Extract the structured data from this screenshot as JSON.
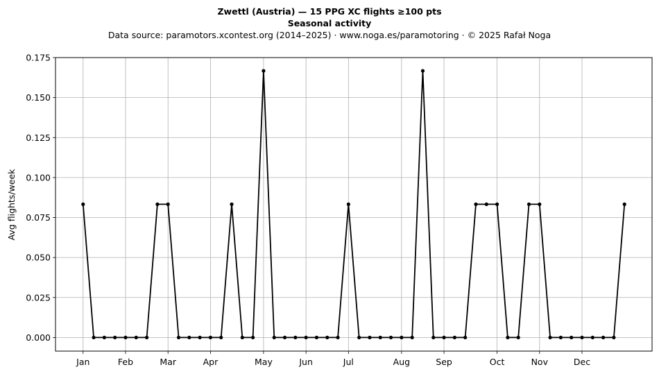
{
  "chart_data": {
    "type": "line",
    "title": "Zwettl (Austria)  —  15 PPG XC flights ≥100 pts",
    "subtitle": "Seasonal activity",
    "source_note": "Data source: paramotors.xcontest.org (2014–2025)  ·  www.noga.es/paramotoring  ·  © 2025 Rafał Noga",
    "xlabel": "",
    "ylabel": "Avg flights/week",
    "ylim": [
      -0.0085,
      0.175
    ],
    "xlim": [
      -2.6,
      53.6
    ],
    "grid": true,
    "x_tick_positions": [
      0,
      4,
      8,
      12,
      17,
      21,
      25,
      30,
      34,
      39,
      43,
      47
    ],
    "x_tick_labels": [
      "Jan",
      "Feb",
      "Mar",
      "Apr",
      "May",
      "Jun",
      "Jul",
      "Aug",
      "Sep",
      "Oct",
      "Nov",
      "Dec"
    ],
    "y_ticks": [
      0.0,
      0.025,
      0.05,
      0.075,
      0.1,
      0.125,
      0.15,
      0.175
    ],
    "y_tick_labels": [
      "0.000",
      "0.025",
      "0.050",
      "0.075",
      "0.100",
      "0.125",
      "0.150",
      "0.175"
    ],
    "series": [
      {
        "name": "",
        "color": "#000000",
        "marker": "circle",
        "x": [
          0,
          1,
          2,
          3,
          4,
          5,
          6,
          7,
          8,
          9,
          10,
          11,
          12,
          13,
          14,
          15,
          16,
          17,
          18,
          19,
          20,
          21,
          22,
          23,
          24,
          25,
          26,
          27,
          28,
          29,
          30,
          31,
          32,
          33,
          34,
          35,
          36,
          37,
          38,
          39,
          40,
          41,
          42,
          43,
          44,
          45,
          46,
          47,
          48,
          49,
          50,
          51
        ],
        "values": [
          0.0833,
          0,
          0,
          0,
          0,
          0,
          0,
          0.0833,
          0.0833,
          0,
          0,
          0,
          0,
          0,
          0.0833,
          0,
          0,
          0.1667,
          0,
          0,
          0,
          0,
          0,
          0,
          0,
          0.0833,
          0,
          0,
          0,
          0,
          0,
          0,
          0.1667,
          0,
          0,
          0,
          0,
          0.0833,
          0.0833,
          0.0833,
          0,
          0,
          0.0833,
          0.0833,
          0,
          0,
          0,
          0,
          0,
          0,
          0,
          0.0833
        ]
      }
    ]
  }
}
